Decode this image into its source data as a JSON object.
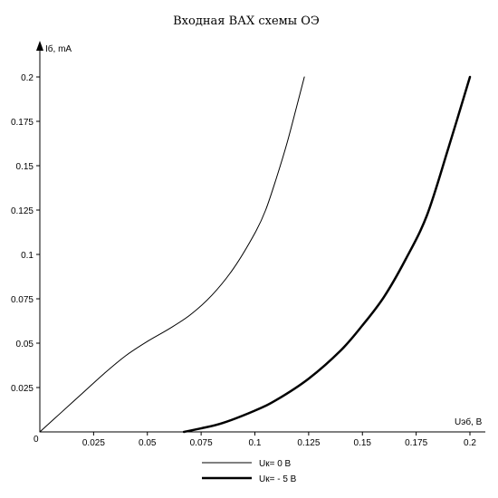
{
  "chart_data": {
    "type": "line",
    "title": "Входная ВАХ схемы ОЭ",
    "xlabel": "Uэб, В",
    "ylabel": "Iб, mA",
    "origin_label": "0",
    "xlim": [
      0,
      0.2
    ],
    "ylim": [
      0,
      0.2
    ],
    "x_ticks": [
      "0.025",
      "0.05",
      "0.075",
      "0.1",
      "0.125",
      "0.15",
      "0.175",
      "0.2"
    ],
    "y_ticks": [
      "0.025",
      "0.05",
      "0.075",
      "0.1",
      "0.125",
      "0.15",
      "0.175",
      "0.2"
    ],
    "grid": false,
    "legend_position": "bottom-center",
    "series": [
      {
        "name": "Uк= 0 В",
        "color": "#000000",
        "style": "thin",
        "points": [
          [
            0,
            0
          ],
          [
            0.01,
            0.011
          ],
          [
            0.02,
            0.022
          ],
          [
            0.03,
            0.033
          ],
          [
            0.04,
            0.043
          ],
          [
            0.05,
            0.051
          ],
          [
            0.06,
            0.058
          ],
          [
            0.07,
            0.066
          ],
          [
            0.08,
            0.077
          ],
          [
            0.09,
            0.092
          ],
          [
            0.1,
            0.112
          ],
          [
            0.105,
            0.125
          ],
          [
            0.11,
            0.143
          ],
          [
            0.115,
            0.163
          ],
          [
            0.12,
            0.186
          ],
          [
            0.123,
            0.2
          ]
        ]
      },
      {
        "name": "Uк= - 5 В",
        "color": "#000000",
        "style": "thick",
        "points": [
          [
            0.067,
            0
          ],
          [
            0.075,
            0.002
          ],
          [
            0.085,
            0.005
          ],
          [
            0.1,
            0.012
          ],
          [
            0.11,
            0.018
          ],
          [
            0.125,
            0.03
          ],
          [
            0.14,
            0.046
          ],
          [
            0.15,
            0.06
          ],
          [
            0.16,
            0.076
          ],
          [
            0.17,
            0.097
          ],
          [
            0.18,
            0.122
          ],
          [
            0.19,
            0.16
          ],
          [
            0.2,
            0.2
          ]
        ]
      }
    ]
  }
}
